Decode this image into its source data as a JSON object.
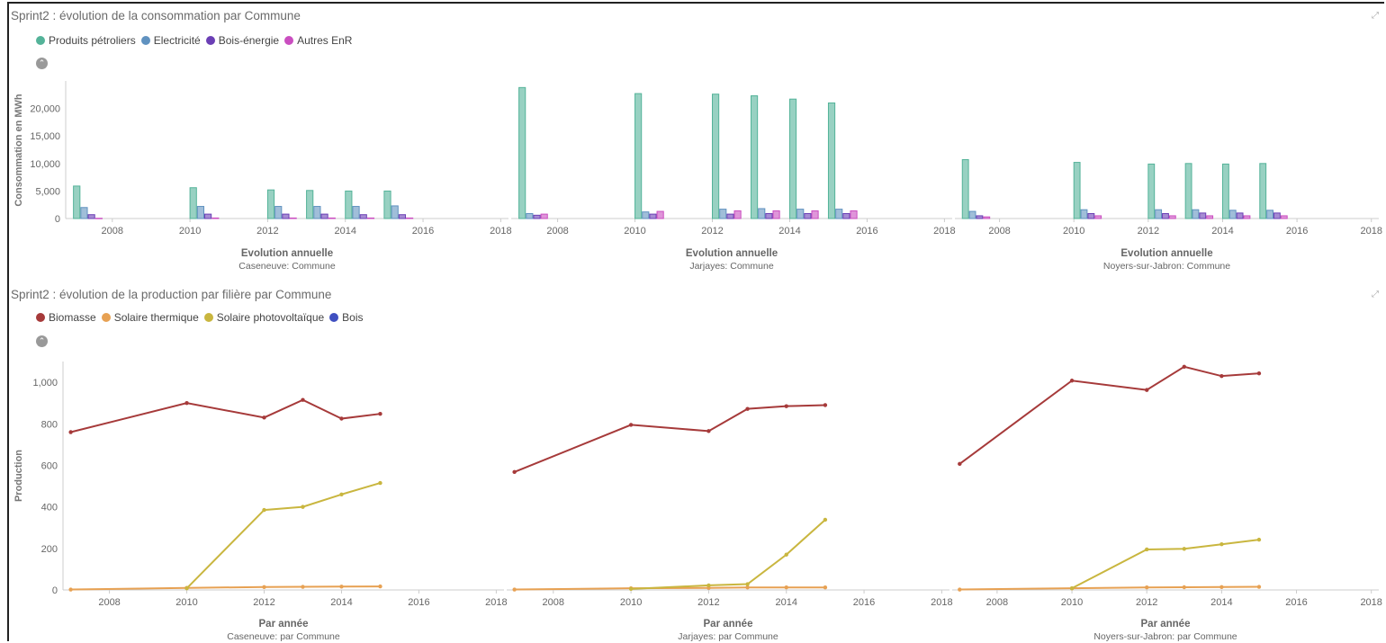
{
  "panels": [
    {
      "title": "Sprint2 : évolution de la consommation par Commune",
      "legend": [
        {
          "label": "Produits pétroliers",
          "color": "#54B399"
        },
        {
          "label": "Electricité",
          "color": "#6092C0"
        },
        {
          "label": "Bois-énergie",
          "color": "#6B3FB5"
        },
        {
          "label": "Autres EnR",
          "color": "#CA4EC0"
        }
      ]
    },
    {
      "title": "Sprint2 : évolution de la production par filière par Commune",
      "legend": [
        {
          "label": "Biomasse",
          "color": "#A63A3A"
        },
        {
          "label": "Solaire thermique",
          "color": "#E7A153"
        },
        {
          "label": "Solaire photovoltaïque",
          "color": "#C9B63F"
        },
        {
          "label": "Bois",
          "color": "#3F4FC0"
        }
      ]
    }
  ],
  "chart_data": [
    {
      "type": "bar",
      "title": "Sprint2 : évolution de la consommation par Commune",
      "ylabel": "Consommation en MWh",
      "xlabel": "Evolution annuelle",
      "ylim": [
        0,
        25000
      ],
      "yticks": [
        0,
        5000,
        10000,
        15000,
        20000
      ],
      "ytick_labels": [
        "0",
        "5,000",
        "10,000",
        "15,000",
        "20,000"
      ],
      "xlim": [
        2006.8,
        2018.2
      ],
      "xticks": [
        "2008",
        "2010",
        "2012",
        "2014",
        "2016",
        "2018"
      ],
      "series_names": [
        "Produits pétroliers",
        "Electricité",
        "Bois-énergie",
        "Autres EnR"
      ],
      "colors": [
        "#54B399",
        "#6092C0",
        "#6B3FB5",
        "#CA4EC0"
      ],
      "categories": [
        2007,
        2010,
        2012,
        2013,
        2014,
        2015
      ],
      "facets": [
        {
          "subtitle": "Caseneuve: Commune",
          "values": [
            [
              5900,
              2000,
              700,
              50
            ],
            [
              5600,
              2200,
              800,
              100
            ],
            [
              5200,
              2200,
              800,
              100
            ],
            [
              5100,
              2200,
              800,
              100
            ],
            [
              5000,
              2200,
              700,
              100
            ],
            [
              5000,
              2300,
              700,
              100
            ]
          ]
        },
        {
          "subtitle": "Jarjayes: Commune",
          "values": [
            [
              23800,
              900,
              600,
              800
            ],
            [
              22700,
              1200,
              800,
              1300
            ],
            [
              22600,
              1700,
              800,
              1400
            ],
            [
              22300,
              1800,
              900,
              1400
            ],
            [
              21700,
              1700,
              900,
              1400
            ],
            [
              21000,
              1700,
              900,
              1400
            ]
          ]
        },
        {
          "subtitle": "Noyers-sur-Jabron: Commune",
          "values": [
            [
              10700,
              1300,
              500,
              300
            ],
            [
              10200,
              1600,
              900,
              500
            ],
            [
              9900,
              1600,
              900,
              500
            ],
            [
              10000,
              1600,
              1000,
              500
            ],
            [
              9900,
              1500,
              1000,
              500
            ],
            [
              10000,
              1500,
              1000,
              500
            ]
          ]
        }
      ]
    },
    {
      "type": "line",
      "title": "Sprint2 : évolution de la production par filière par Commune",
      "ylabel": "Production",
      "xlabel": "Par année",
      "ylim": [
        0,
        1100
      ],
      "yticks": [
        0,
        200,
        400,
        600,
        800,
        1000
      ],
      "ytick_labels": [
        "0",
        "200",
        "400",
        "600",
        "800",
        "1,000"
      ],
      "xlim": [
        2006.8,
        2018.2
      ],
      "xticks": [
        "2008",
        "2010",
        "2012",
        "2014",
        "2016",
        "2018"
      ],
      "series_names": [
        "Biomasse",
        "Solaire thermique",
        "Solaire photovoltaïque",
        "Bois"
      ],
      "colors": [
        "#A63A3A",
        "#E7A153",
        "#C9B63F",
        "#3F4FC0"
      ],
      "x": [
        2007,
        2010,
        2012,
        2013,
        2014,
        2015
      ],
      "facets": [
        {
          "subtitle": "Caseneuve: par Commune",
          "series": [
            {
              "values": [
                760,
                900,
                830,
                915,
                825,
                848
              ]
            },
            {
              "values": [
                2,
                10,
                14,
                15,
                16,
                17
              ]
            },
            {
              "values": [
                null,
                8,
                385,
                400,
                460,
                515
              ]
            }
          ]
        },
        {
          "subtitle": "Jarjayes: par Commune",
          "series": [
            {
              "values": [
                568,
                795,
                765,
                872,
                885,
                890
              ]
            },
            {
              "values": [
                2,
                8,
                10,
                12,
                12,
                12
              ]
            },
            {
              "values": [
                null,
                5,
                22,
                28,
                170,
                338
              ]
            }
          ]
        },
        {
          "subtitle": "Noyers-sur-Jabron: par Commune",
          "series": [
            {
              "values": [
                607,
                1008,
                963,
                1075,
                1030,
                1043
              ]
            },
            {
              "values": [
                2,
                8,
                12,
                13,
                14,
                15
              ]
            },
            {
              "values": [
                null,
                8,
                195,
                198,
                220,
                242
              ]
            }
          ]
        }
      ]
    }
  ]
}
